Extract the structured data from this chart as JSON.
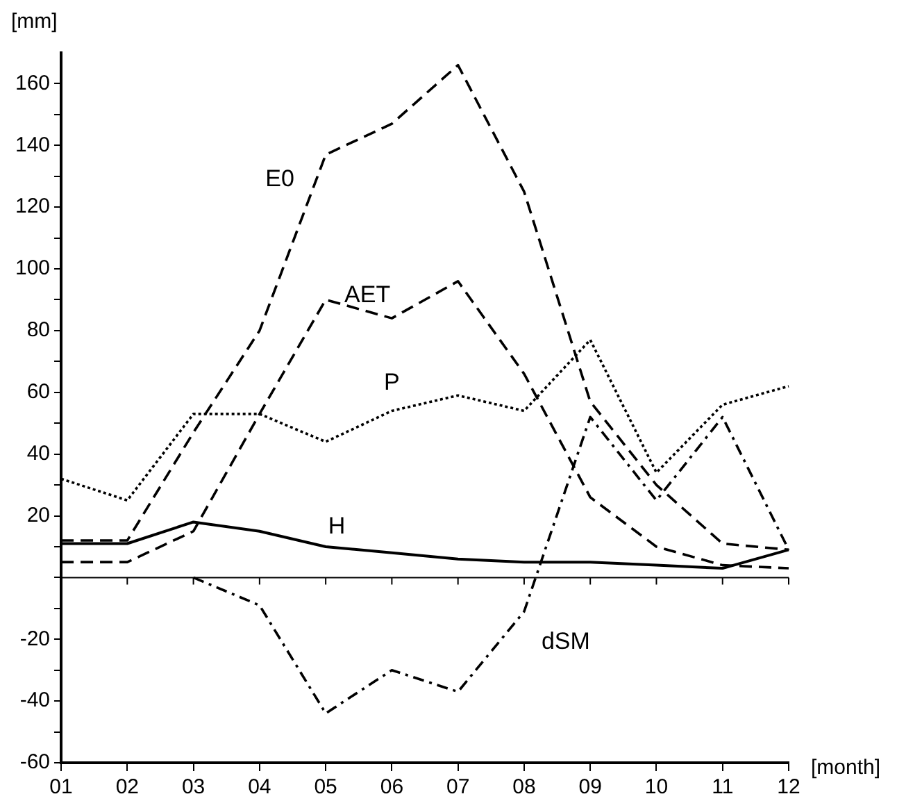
{
  "chart_data": {
    "type": "line",
    "xlabel": "[month]",
    "ylabel": "[mm]",
    "categories": [
      "01",
      "02",
      "03",
      "04",
      "05",
      "06",
      "07",
      "08",
      "09",
      "10",
      "11",
      "12"
    ],
    "series": [
      {
        "name": "E0",
        "color": "#000000",
        "line_style": "dashed",
        "values": [
          12,
          12,
          47,
          80,
          137,
          147,
          166,
          125,
          57,
          30,
          11,
          9
        ]
      },
      {
        "name": "AET",
        "color": "#000000",
        "line_style": "dashed",
        "values": [
          5,
          5,
          15,
          53,
          90,
          84,
          96,
          66,
          26,
          10,
          4,
          3
        ]
      },
      {
        "name": "P",
        "color": "#000000",
        "line_style": "dotted",
        "values": [
          32,
          25,
          53,
          53,
          44,
          54,
          59,
          54,
          77,
          34,
          56,
          62
        ]
      },
      {
        "name": "H",
        "color": "#000000",
        "line_style": "solid",
        "values": [
          11,
          11,
          18,
          15,
          10,
          8,
          6,
          5,
          5,
          4,
          3,
          9
        ]
      },
      {
        "name": "dSM",
        "color": "#000000",
        "line_style": "dashdot",
        "values": [
          null,
          null,
          0,
          -9,
          -44,
          -30,
          -37,
          -11,
          52,
          25,
          52,
          9
        ]
      }
    ],
    "ylim": [
      -60,
      170
    ],
    "yticks": [
      -60,
      {
        "value": -50,
        "label": null
      },
      -40,
      {
        "value": -30,
        "label": null
      },
      -20,
      {
        "value": -10,
        "label": null
      },
      {
        "value": 0,
        "label": null
      },
      {
        "value": 10,
        "label": null
      },
      20,
      {
        "value": 30,
        "label": null
      },
      40,
      {
        "value": 50,
        "label": null
      },
      60,
      {
        "value": 70,
        "label": null
      },
      80,
      {
        "value": 90,
        "label": null
      },
      100,
      {
        "value": 110,
        "label": null
      },
      120,
      {
        "value": 130,
        "label": null
      },
      140,
      {
        "value": 150,
        "label": null
      },
      160
    ],
    "ref_lines": [
      {
        "axis": "y",
        "value": 0,
        "color": "#000000"
      }
    ],
    "grid": false,
    "legend": false,
    "marker": "none"
  }
}
